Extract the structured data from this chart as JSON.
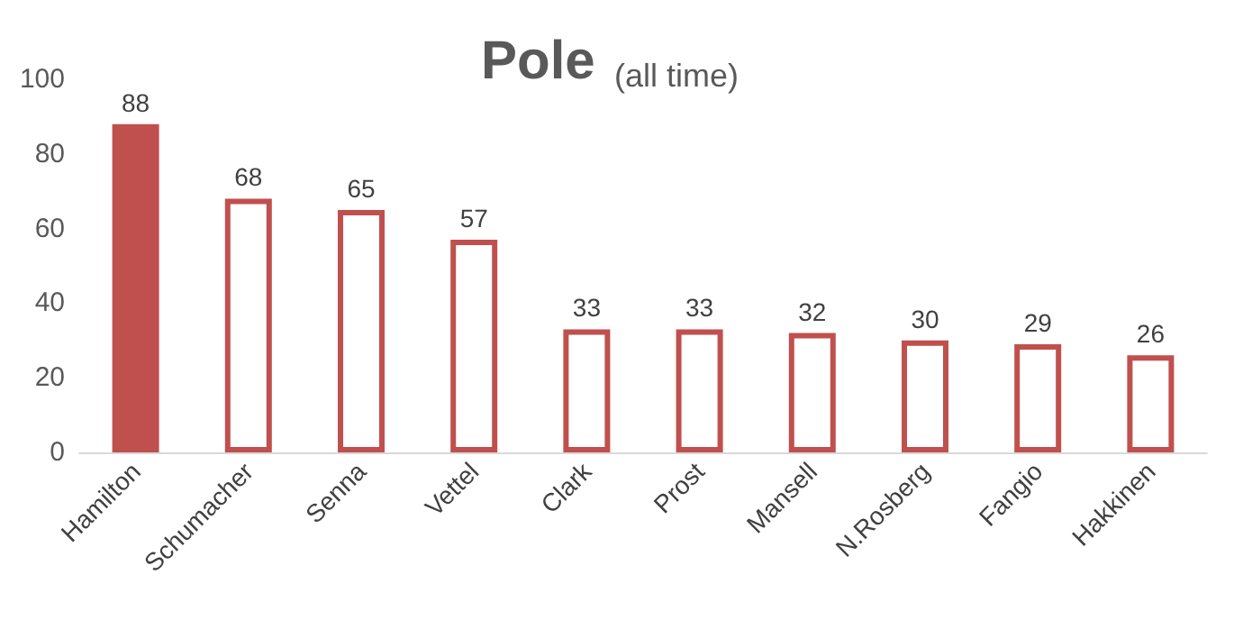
{
  "chart_data": {
    "type": "bar",
    "title": "Pole",
    "subtitle": "(all time)",
    "categories": [
      "Hamilton",
      "Schumacher",
      "Senna",
      "Vettel",
      "Clark",
      "Prost",
      "Mansell",
      "N.Rosberg",
      "Fangio",
      "Hakkinen"
    ],
    "values": [
      88,
      68,
      65,
      57,
      33,
      33,
      32,
      30,
      29,
      26
    ],
    "color": "#c0504d",
    "colors": [
      "#c0504d",
      "#ffffff",
      "#ffffff",
      "#ffffff",
      "#ffffff",
      "#ffffff",
      "#ffffff",
      "#ffffff",
      "#ffffff",
      "#ffffff"
    ],
    "ylim": [
      0,
      100
    ],
    "yticks": [
      0,
      20,
      40,
      60,
      80,
      100
    ],
    "data_labels": true,
    "grid": false
  }
}
